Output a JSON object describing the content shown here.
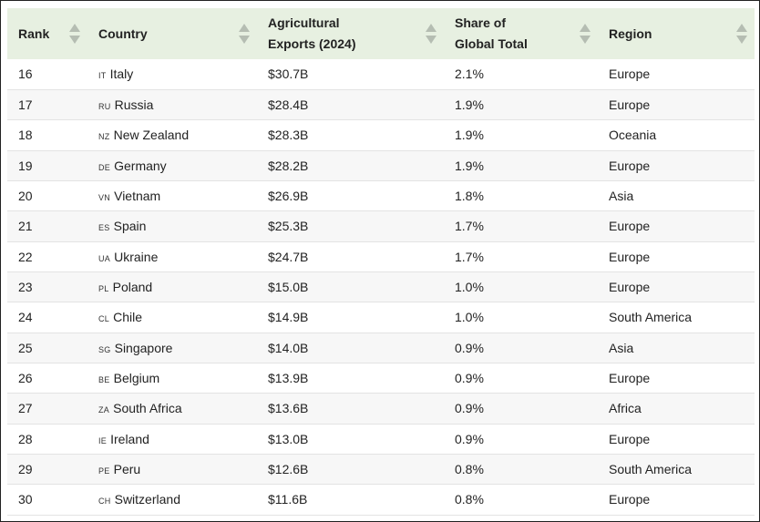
{
  "headers": [
    {
      "label_lines": [
        "Rank"
      ]
    },
    {
      "label_lines": [
        "Country"
      ]
    },
    {
      "label_lines": [
        "Agricultural",
        "Exports (2024)"
      ]
    },
    {
      "label_lines": [
        "Share of",
        "Global Total"
      ]
    },
    {
      "label_lines": [
        "Region"
      ]
    }
  ],
  "rows": [
    {
      "rank": "16",
      "code": "IT",
      "country": "Italy",
      "exports": "$30.7B",
      "share": "2.1%",
      "region": "Europe"
    },
    {
      "rank": "17",
      "code": "RU",
      "country": "Russia",
      "exports": "$28.4B",
      "share": "1.9%",
      "region": "Europe"
    },
    {
      "rank": "18",
      "code": "NZ",
      "country": "New Zealand",
      "exports": "$28.3B",
      "share": "1.9%",
      "region": "Oceania"
    },
    {
      "rank": "19",
      "code": "DE",
      "country": "Germany",
      "exports": "$28.2B",
      "share": "1.9%",
      "region": "Europe"
    },
    {
      "rank": "20",
      "code": "VN",
      "country": "Vietnam",
      "exports": "$26.9B",
      "share": "1.8%",
      "region": "Asia"
    },
    {
      "rank": "21",
      "code": "ES",
      "country": "Spain",
      "exports": "$25.3B",
      "share": "1.7%",
      "region": "Europe"
    },
    {
      "rank": "22",
      "code": "UA",
      "country": "Ukraine",
      "exports": "$24.7B",
      "share": "1.7%",
      "region": "Europe"
    },
    {
      "rank": "23",
      "code": "PL",
      "country": "Poland",
      "exports": "$15.0B",
      "share": "1.0%",
      "region": "Europe"
    },
    {
      "rank": "24",
      "code": "CL",
      "country": "Chile",
      "exports": "$14.9B",
      "share": "1.0%",
      "region": "South America"
    },
    {
      "rank": "25",
      "code": "SG",
      "country": "Singapore",
      "exports": "$14.0B",
      "share": "0.9%",
      "region": "Asia"
    },
    {
      "rank": "26",
      "code": "BE",
      "country": "Belgium",
      "exports": "$13.9B",
      "share": "0.9%",
      "region": "Europe"
    },
    {
      "rank": "27",
      "code": "ZA",
      "country": "South Africa",
      "exports": "$13.6B",
      "share": "0.9%",
      "region": "Africa"
    },
    {
      "rank": "28",
      "code": "IE",
      "country": "Ireland",
      "exports": "$13.0B",
      "share": "0.9%",
      "region": "Europe"
    },
    {
      "rank": "29",
      "code": "PE",
      "country": "Peru",
      "exports": "$12.6B",
      "share": "0.8%",
      "region": "South America"
    },
    {
      "rank": "30",
      "code": "CH",
      "country": "Switzerland",
      "exports": "$11.6B",
      "share": "0.8%",
      "region": "Europe"
    }
  ],
  "colors": {
    "header_bg": "#e7f0e1",
    "sort_icon": "#b5bdb2",
    "row_alt_bg": "#f7f7f7"
  },
  "icons": {
    "sort": "sort-up-down-icon"
  }
}
